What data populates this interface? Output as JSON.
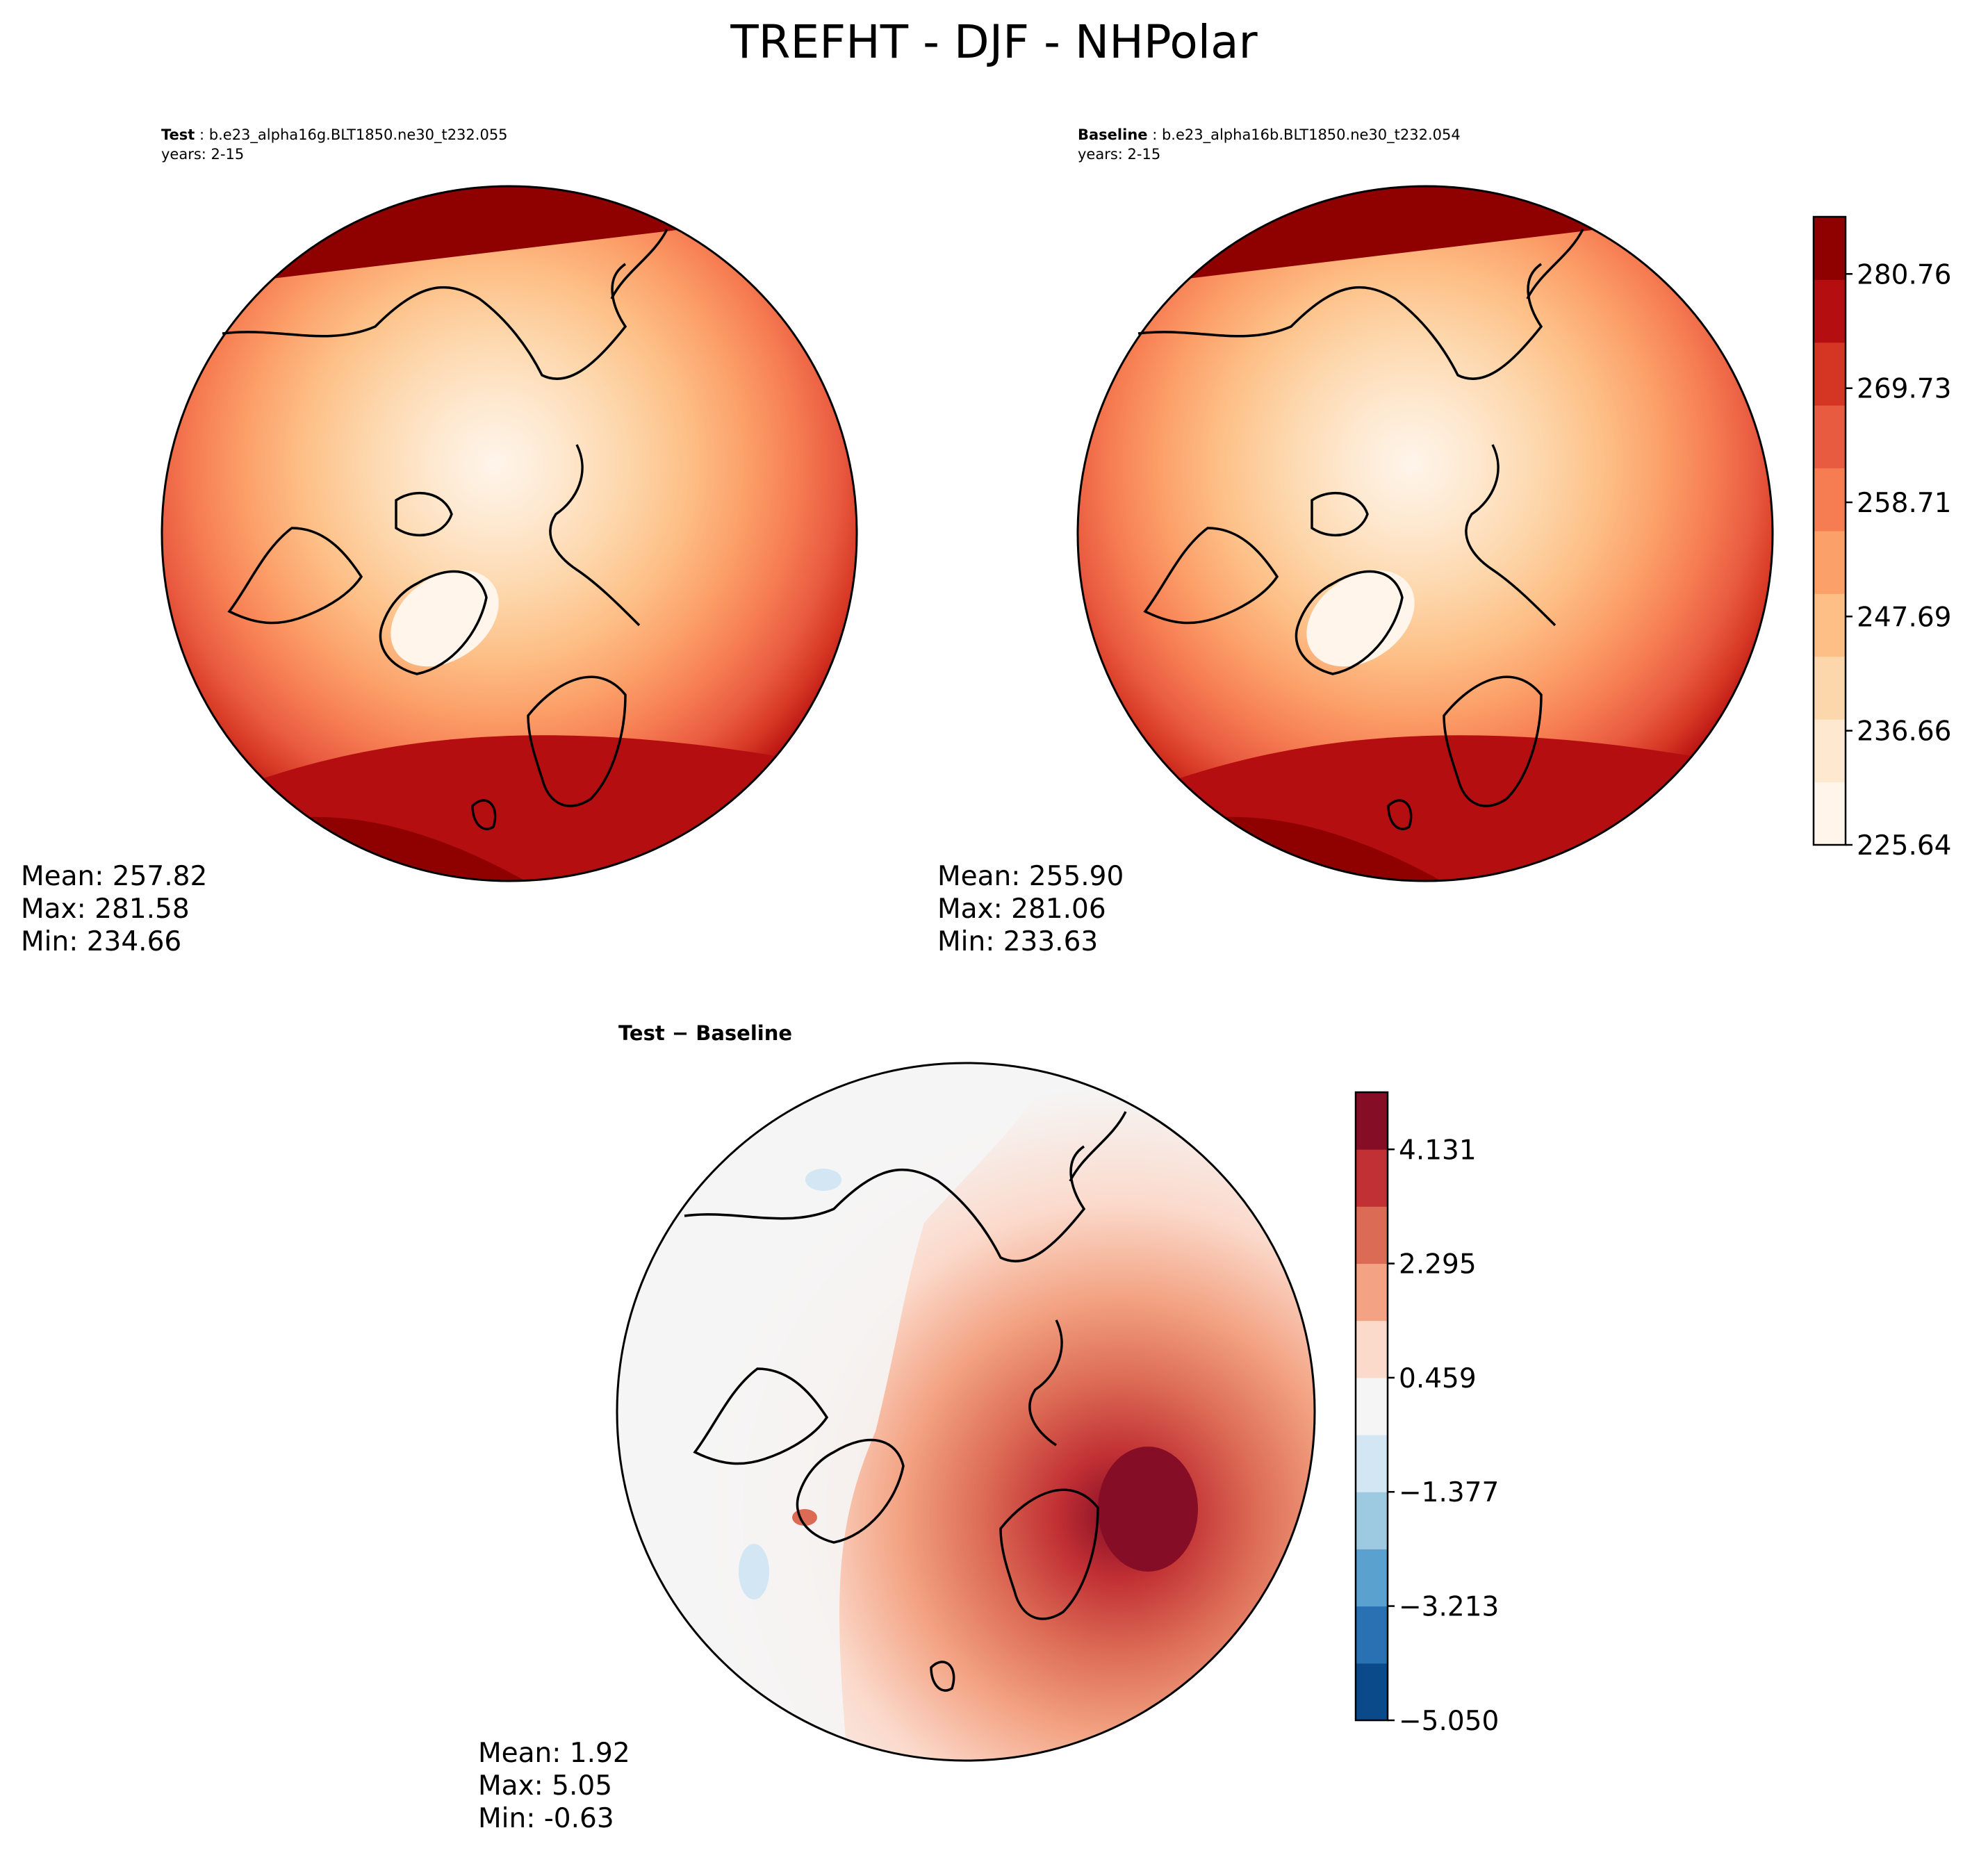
{
  "title": "TREFHT - DJF - NHPolar",
  "test_panel": {
    "label": "Test",
    "case": "b.e23_alpha16g.BLT1850.ne30_t232.055",
    "years": "years: 2-15",
    "mean": "Mean: 257.82",
    "max": "Max: 281.58",
    "min": "Min: 234.66"
  },
  "baseline_panel": {
    "label": "Baseline",
    "case": "b.e23_alpha16b.BLT1850.ne30_t232.054",
    "years": "years: 2-15",
    "mean": "Mean: 255.90",
    "max": "Max: 281.06",
    "min": "Min: 233.63"
  },
  "diff_panel": {
    "title": "Test − Baseline",
    "mean": "Mean:  1.92",
    "max": "Max:  5.05",
    "min": "Min: -0.63"
  },
  "chart_data": [
    {
      "type": "heatmap",
      "name": "test",
      "projection": "north-polar-stereographic",
      "title": "Test : b.e23_alpha16g.BLT1850.ne30_t232.055",
      "stats": {
        "mean": 257.82,
        "max": 281.58,
        "min": 234.66
      }
    },
    {
      "type": "heatmap",
      "name": "baseline",
      "projection": "north-polar-stereographic",
      "title": "Baseline : b.e23_alpha16b.BLT1850.ne30_t232.054",
      "stats": {
        "mean": 255.9,
        "max": 281.06,
        "min": 233.63
      }
    },
    {
      "type": "heatmap",
      "name": "difference",
      "projection": "north-polar-stereographic",
      "title": "Test − Baseline",
      "stats": {
        "mean": 1.92,
        "max": 5.05,
        "min": -0.63
      }
    }
  ],
  "colorbar_main": {
    "range": [
      225.64,
      286.28
    ],
    "tick_values": [
      225.64,
      236.66,
      247.69,
      258.71,
      269.73,
      280.76
    ],
    "tick_labels": [
      "225.64",
      "236.66",
      "247.69",
      "258.71",
      "269.73",
      "280.76"
    ],
    "colors": [
      "#fff5eb",
      "#fee8cf",
      "#fdd7ac",
      "#fdbf86",
      "#fca06a",
      "#f67d52",
      "#e95b40",
      "#d53623",
      "#b50e10",
      "#8f0000"
    ]
  },
  "colorbar_diff": {
    "range": [
      -5.05,
      5.05
    ],
    "tick_values": [
      -5.05,
      -3.213,
      -1.377,
      0.459,
      2.295,
      4.131
    ],
    "tick_labels": [
      "−5.050",
      "−3.213",
      "−1.377",
      "0.459",
      "2.295",
      "4.131"
    ],
    "colors": [
      "#0b4a8a",
      "#2a71b3",
      "#5aa1cf",
      "#9ecae1",
      "#d3e6f3",
      "#f5f5f5",
      "#fbdacc",
      "#f3a383",
      "#dc6b55",
      "#c13034",
      "#850d25"
    ]
  },
  "colors": {
    "coast": "#000000",
    "ocean_warm": "#b50e10",
    "polar_cold": "#fdd7ac",
    "diff_neutral": "#f5f5f5"
  }
}
